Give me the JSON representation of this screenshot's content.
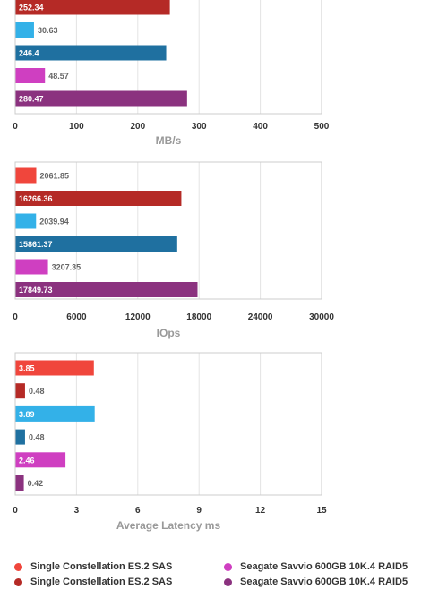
{
  "chart_data": [
    {
      "type": "bar",
      "orientation": "horizontal",
      "xlabel": "MB/s",
      "xlim": [
        0,
        500
      ],
      "xticks": [
        0,
        100,
        200,
        300,
        400,
        500
      ],
      "bars": [
        {
          "value": 252.34,
          "label": "252.34",
          "series": 1,
          "label_inside": true
        },
        {
          "value": 30.63,
          "label": "30.63",
          "series": 2,
          "label_inside": false
        },
        {
          "value": 246.4,
          "label": "246.4",
          "series": 3,
          "label_inside": true
        },
        {
          "value": 48.57,
          "label": "48.57",
          "series": 4,
          "label_inside": false
        },
        {
          "value": 280.47,
          "label": "280.47",
          "series": 5,
          "label_inside": true
        }
      ]
    },
    {
      "type": "bar",
      "orientation": "horizontal",
      "xlabel": "IOps",
      "xlim": [
        0,
        30000
      ],
      "xticks": [
        0,
        6000,
        12000,
        18000,
        24000,
        30000
      ],
      "bars": [
        {
          "value": 2061.85,
          "label": "2061.85",
          "series": 0,
          "label_inside": false
        },
        {
          "value": 16266.36,
          "label": "16266.36",
          "series": 1,
          "label_inside": true
        },
        {
          "value": 2039.94,
          "label": "2039.94",
          "series": 2,
          "label_inside": false
        },
        {
          "value": 15861.37,
          "label": "15861.37",
          "series": 3,
          "label_inside": true
        },
        {
          "value": 3207.35,
          "label": "3207.35",
          "series": 4,
          "label_inside": false
        },
        {
          "value": 17849.73,
          "label": "17849.73",
          "series": 5,
          "label_inside": true
        }
      ]
    },
    {
      "type": "bar",
      "orientation": "horizontal",
      "xlabel": "Average Latency ms",
      "xlim": [
        0,
        15
      ],
      "xticks": [
        0,
        3,
        6,
        9,
        12,
        15
      ],
      "bars": [
        {
          "value": 3.85,
          "label": "3.85",
          "series": 0,
          "label_inside": true
        },
        {
          "value": 0.48,
          "label": "0.48",
          "series": 1,
          "label_inside": false
        },
        {
          "value": 3.89,
          "label": "3.89",
          "series": 2,
          "label_inside": true
        },
        {
          "value": 0.48,
          "label": "0.48",
          "series": 3,
          "label_inside": false
        },
        {
          "value": 2.46,
          "label": "2.46",
          "series": 4,
          "label_inside": true
        },
        {
          "value": 0.42,
          "label": "0.42",
          "series": 5,
          "label_inside": false
        }
      ]
    }
  ],
  "series_colors": [
    "#f0463c",
    "#b52a26",
    "#33b1e8",
    "#1f70a0",
    "#cf3fc1",
    "#8b327f"
  ],
  "legend": [
    {
      "label": "Single Constellation ES.2 SAS",
      "series": 0
    },
    {
      "label": "Seagate Savvio 600GB 10K.4 RAID5",
      "series": 4
    },
    {
      "label": "Single Constellation ES.2 SAS",
      "series": 1
    },
    {
      "label": "Seagate Savvio 600GB 10K.4 RAID5",
      "series": 5
    }
  ],
  "legend_placement": "bottom",
  "grid": true
}
